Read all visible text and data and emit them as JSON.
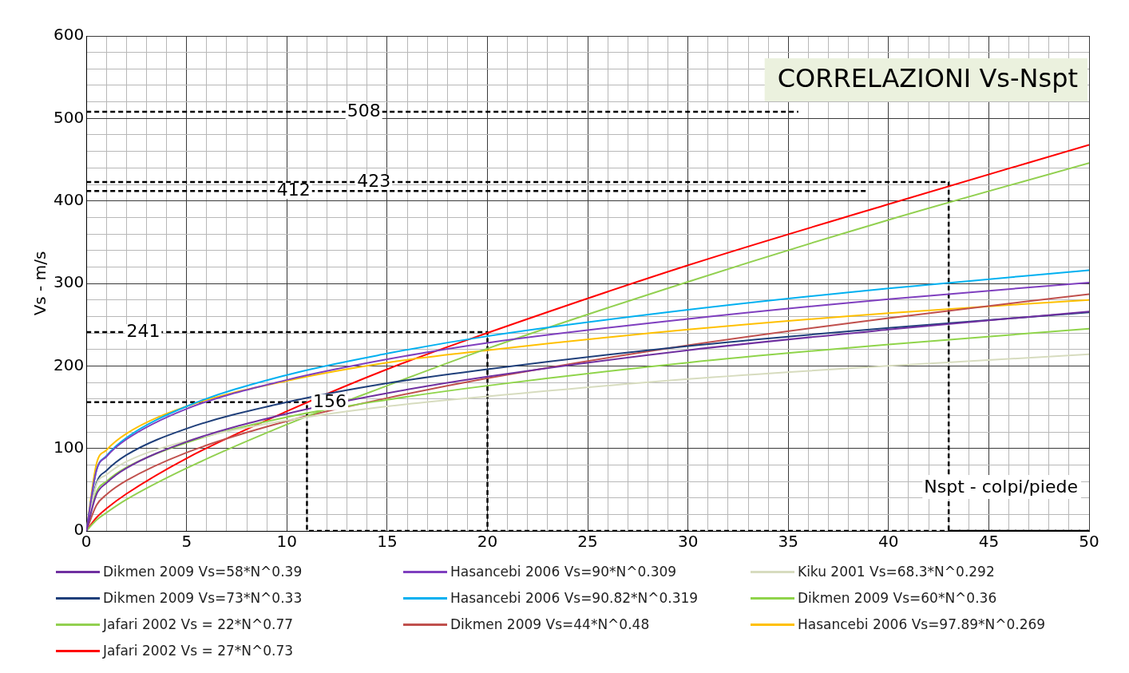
{
  "chart_data": {
    "type": "line",
    "title": "CORRELAZIONI Vs-Nspt",
    "xlabel": "Nspt - colpi/piede",
    "ylabel": "Vs - m/s",
    "x": [
      0,
      0.5,
      1,
      2,
      5,
      10,
      15,
      20,
      30,
      40,
      50
    ],
    "xlim": [
      0,
      50
    ],
    "xticks": [
      0,
      {
        "value": 1,
        "label": null
      },
      {
        "value": 2,
        "label": null
      },
      {
        "value": 3,
        "label": null
      },
      {
        "value": 4,
        "label": null
      },
      5,
      {
        "value": 6,
        "label": null
      },
      {
        "value": 7,
        "label": null
      },
      {
        "value": 8,
        "label": null
      },
      {
        "value": 9,
        "label": null
      },
      10,
      {
        "value": 11,
        "label": null
      },
      {
        "value": 12,
        "label": null
      },
      {
        "value": 13,
        "label": null
      },
      {
        "value": 14,
        "label": null
      },
      15,
      {
        "value": 16,
        "label": null
      },
      {
        "value": 17,
        "label": null
      },
      {
        "value": 18,
        "label": null
      },
      {
        "value": 19,
        "label": null
      },
      20,
      {
        "value": 21,
        "label": null
      },
      {
        "value": 22,
        "label": null
      },
      {
        "value": 23,
        "label": null
      },
      {
        "value": 24,
        "label": null
      },
      25,
      {
        "value": 26,
        "label": null
      },
      {
        "value": 27,
        "label": null
      },
      {
        "value": 28,
        "label": null
      },
      {
        "value": 29,
        "label": null
      },
      30,
      {
        "value": 31,
        "label": null
      },
      {
        "value": 32,
        "label": null
      },
      {
        "value": 33,
        "label": null
      },
      {
        "value": 34,
        "label": null
      },
      35,
      {
        "value": 36,
        "label": null
      },
      {
        "value": 37,
        "label": null
      },
      {
        "value": 38,
        "label": null
      },
      {
        "value": 39,
        "label": null
      },
      40,
      {
        "value": 41,
        "label": null
      },
      {
        "value": 42,
        "label": null
      },
      {
        "value": 43,
        "label": null
      },
      {
        "value": 44,
        "label": null
      },
      45,
      {
        "value": 46,
        "label": null
      },
      {
        "value": 47,
        "label": null
      },
      {
        "value": 48,
        "label": null
      },
      {
        "value": 49,
        "label": null
      },
      50
    ],
    "ylim": [
      0,
      600
    ],
    "yticks": [
      0,
      {
        "value": 20,
        "label": null
      },
      {
        "value": 40,
        "label": null
      },
      {
        "value": 60,
        "label": null
      },
      {
        "value": 80,
        "label": null
      },
      100,
      {
        "value": 120,
        "label": null
      },
      {
        "value": 140,
        "label": null
      },
      {
        "value": 160,
        "label": null
      },
      {
        "value": 180,
        "label": null
      },
      200,
      {
        "value": 220,
        "label": null
      },
      {
        "value": 240,
        "label": null
      },
      {
        "value": 260,
        "label": null
      },
      {
        "value": 280,
        "label": null
      },
      300,
      {
        "value": 320,
        "label": null
      },
      {
        "value": 340,
        "label": null
      },
      {
        "value": 360,
        "label": null
      },
      {
        "value": 380,
        "label": null
      },
      400,
      {
        "value": 420,
        "label": null
      },
      {
        "value": 440,
        "label": null
      },
      {
        "value": 460,
        "label": null
      },
      {
        "value": 480,
        "label": null
      },
      500,
      {
        "value": 520,
        "label": null
      },
      {
        "value": 540,
        "label": null
      },
      {
        "value": 560,
        "label": null
      },
      {
        "value": 580,
        "label": null
      },
      600
    ],
    "grid": true,
    "legend": "bottom",
    "marker": "none",
    "series": [
      {
        "name": "Dikmen 2009 Vs=58*N^0.39",
        "color": "#7030a0",
        "values": [
          0,
          44,
          58,
          76,
          108,
          142,
          167,
          187,
          219,
          244,
          266
        ]
      },
      {
        "name": "Hasancebi 2006 Vs=90*N^0.309",
        "color": "#7f3fbf",
        "values": [
          0,
          73,
          90,
          111,
          148,
          183,
          208,
          228,
          257,
          281,
          301
        ]
      },
      {
        "name": "Kiku 2001 Vs=68.3*N^0.292",
        "color": "#d7dcbf",
        "values": [
          0,
          56,
          68,
          84,
          109,
          134,
          151,
          163,
          184,
          200,
          214
        ]
      },
      {
        "name": "Dikmen 2009 Vs=73*N^0.33",
        "color": "#1f3f7a",
        "values": [
          0,
          58,
          73,
          92,
          124,
          156,
          179,
          196,
          224,
          246,
          265
        ]
      },
      {
        "name": "Hasancebi 2006 Vs=90.82*N^0.319",
        "color": "#00b0f0",
        "values": [
          0,
          73,
          91,
          113,
          151,
          189,
          215,
          236,
          268,
          294,
          316
        ]
      },
      {
        "name": "Dikmen 2009 Vs=60*N^0.36",
        "color": "#8fd44a",
        "values": [
          0,
          47,
          60,
          77,
          107,
          138,
          159,
          176,
          204,
          226,
          245
        ]
      },
      {
        "name": "Jafari 2002 Vs = 22*N^0.77",
        "color": "#92d050",
        "values": [
          0,
          13,
          22,
          38,
          76,
          129,
          176,
          221,
          302,
          377,
          446
        ]
      },
      {
        "name": "Dikmen 2009 Vs=44*N^0.48",
        "color": "#c0504d",
        "values": [
          0,
          31,
          44,
          61,
          95,
          133,
          161,
          185,
          225,
          258,
          287
        ]
      },
      {
        "name": "Hasancebi 2006 Vs=97.89*N^0.269",
        "color": "#ffc000",
        "values": [
          0,
          81,
          98,
          118,
          151,
          182,
          204,
          219,
          244,
          264,
          280
        ]
      },
      {
        "name": "Jafari 2002 Vs = 27*N^0.73",
        "color": "#ff0000",
        "values": [
          0,
          16,
          27,
          45,
          88,
          145,
          196,
          240,
          322,
          396,
          468
        ]
      },
      {
        "color": "#000000",
        "line_style": "dashed",
        "x": [
          0,
          35.5
        ],
        "values": [
          508,
          508
        ]
      },
      {
        "color": "#000000",
        "line_style": "dashed",
        "x": [
          0,
          43,
          43,
          50
        ],
        "values": [
          423,
          423,
          0,
          0
        ]
      },
      {
        "color": "#000000",
        "line_style": "dashed",
        "x": [
          0,
          39
        ],
        "values": [
          412,
          412
        ]
      },
      {
        "color": "#000000",
        "line_style": "dashed",
        "x": [
          0,
          20,
          20
        ],
        "values": [
          241,
          241,
          0
        ]
      },
      {
        "color": "#000000",
        "line_style": "dashed",
        "x": [
          0,
          11,
          11,
          13,
          50
        ],
        "values": [
          156,
          156,
          0,
          0,
          0
        ]
      }
    ],
    "annotations": [
      {
        "text": "508",
        "x": 13,
        "y": 508
      },
      {
        "text": "423",
        "x": 13.5,
        "y": 423
      },
      {
        "text": "412",
        "x": 9.5,
        "y": 412
      },
      {
        "text": "241",
        "x": 2,
        "y": 241
      },
      {
        "text": "156",
        "x": 11.3,
        "y": 156
      }
    ]
  }
}
